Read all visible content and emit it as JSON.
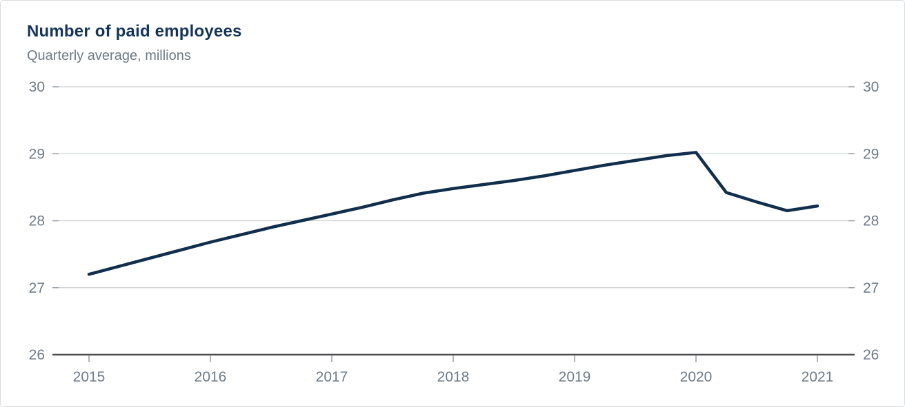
{
  "card": {
    "title": "Number of paid employees",
    "subtitle": "Quarterly average, millions"
  },
  "chart_data": {
    "type": "line",
    "title": "Number of paid employees",
    "subtitle": "Quarterly average, millions",
    "xlabel": "",
    "ylabel": "",
    "ylim": [
      26,
      30
    ],
    "y_ticks": [
      26,
      27,
      28,
      29,
      30
    ],
    "y_axis_sides": "both",
    "grid": "horizontal",
    "legend": "none",
    "x_year_ticks": [
      "2015",
      "2016",
      "2017",
      "2018",
      "2019",
      "2020",
      "2021"
    ],
    "categories": [
      "2015 Q1",
      "2015 Q2",
      "2015 Q3",
      "2015 Q4",
      "2016 Q1",
      "2016 Q2",
      "2016 Q3",
      "2016 Q4",
      "2017 Q1",
      "2017 Q2",
      "2017 Q3",
      "2017 Q4",
      "2018 Q1",
      "2018 Q2",
      "2018 Q3",
      "2018 Q4",
      "2019 Q1",
      "2019 Q2",
      "2019 Q3",
      "2019 Q4",
      "2020 Q1",
      "2020 Q2",
      "2020 Q3",
      "2020 Q4",
      "2021 Q1"
    ],
    "series": [
      {
        "name": "Number of paid employees (millions)",
        "color": "#112e4c",
        "values": [
          27.2,
          27.32,
          27.44,
          27.56,
          27.68,
          27.79,
          27.9,
          28.0,
          28.1,
          28.2,
          28.31,
          28.41,
          28.48,
          28.54,
          28.6,
          28.67,
          28.75,
          28.83,
          28.9,
          28.97,
          29.02,
          28.42,
          28.28,
          28.15,
          28.22
        ]
      }
    ],
    "colors": {
      "line": "#112e4c",
      "title_text": "#14345a",
      "subtitle_text": "#6d7a86",
      "axis_label_text": "#6e7b8a",
      "gridline": "#cdd0d3",
      "gridline_end_dash": "#9aa2aa",
      "bottom_axis": "#4a4b4c",
      "card_border": "#d9dbdd",
      "background": "#ffffff"
    }
  }
}
